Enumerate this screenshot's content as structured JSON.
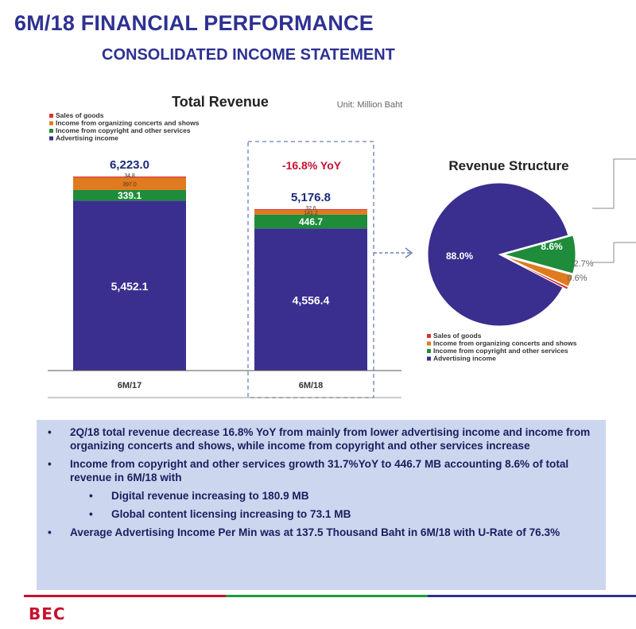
{
  "header": {
    "title": "6M/18 FINANCIAL PERFORMANCE",
    "subtitle": "CONSOLIDATED INCOME STATEMENT"
  },
  "colors": {
    "advertising": "#3a2f8f",
    "copyright": "#1e8c3a",
    "concerts": "#e07a1f",
    "sales": "#d9352b",
    "accent_red": "#c8102e",
    "title_blue": "#2e3192"
  },
  "chart_data": [
    {
      "type": "bar",
      "stacked": true,
      "title": "Total Revenue",
      "unit": "Unit: Million Baht",
      "categories": [
        "6M/17",
        "6M/18"
      ],
      "series": [
        {
          "name": "Advertising income",
          "values": [
            5452.1,
            4556.4
          ],
          "labels": [
            "5,452.1",
            "4,556.4"
          ]
        },
        {
          "name": "Income from copyright and other services",
          "values": [
            339.1,
            446.7
          ],
          "labels": [
            "339.1",
            "446.7"
          ]
        },
        {
          "name": "Income from organizing concerts and shows",
          "values": [
            397.0,
            141.2
          ],
          "labels": [
            "397.0",
            "141.2"
          ]
        },
        {
          "name": "Sales of goods",
          "values": [
            34.8,
            32.6
          ],
          "labels": [
            "34.8",
            "32.6"
          ]
        }
      ],
      "totals": [
        "6,223.0",
        "5,176.8"
      ],
      "yoy_annotation": "-16.8% YoY",
      "legend": {
        "position": "top-left",
        "entries": [
          "Sales of goods",
          "Income from organizing concerts and shows",
          "Income from copyright and other services",
          "Advertising income"
        ]
      }
    },
    {
      "type": "pie",
      "title": "Revenue Structure",
      "slices": [
        {
          "name": "Advertising income",
          "value": 88.0,
          "label": "88.0%"
        },
        {
          "name": "Income from copyright and other services",
          "value": 8.6,
          "label": "8.6%"
        },
        {
          "name": "Income from organizing concerts and shows",
          "value": 2.7,
          "label": "2.7%"
        },
        {
          "name": "Sales of goods",
          "value": 0.6,
          "label": "0.6%"
        }
      ],
      "legend": {
        "position": "bottom",
        "entries": [
          "Sales of goods",
          "Income from organizing concerts and shows",
          "Income from copyright and other services",
          "Advertising income"
        ]
      }
    }
  ],
  "summary": {
    "bullets": [
      "2Q/18 total revenue decrease 16.8% YoY from mainly from lower advertising income and income from organizing concerts and shows, while income from copyright and other services increase",
      "Income from copyright and other services growth 31.7%YoY to 446.7 MB accounting 8.6% of total revenue in 6M/18 with"
    ],
    "sub_bullets": [
      "Digital revenue increasing to 180.9 MB",
      "Global content licensing increasing to 73.1 MB"
    ],
    "last_bullet": "Average Advertising Income Per Min was at 137.5 Thousand Baht in 6M/18 with U-Rate of 76.3%"
  },
  "footer": {
    "logo_text": "BEC"
  }
}
